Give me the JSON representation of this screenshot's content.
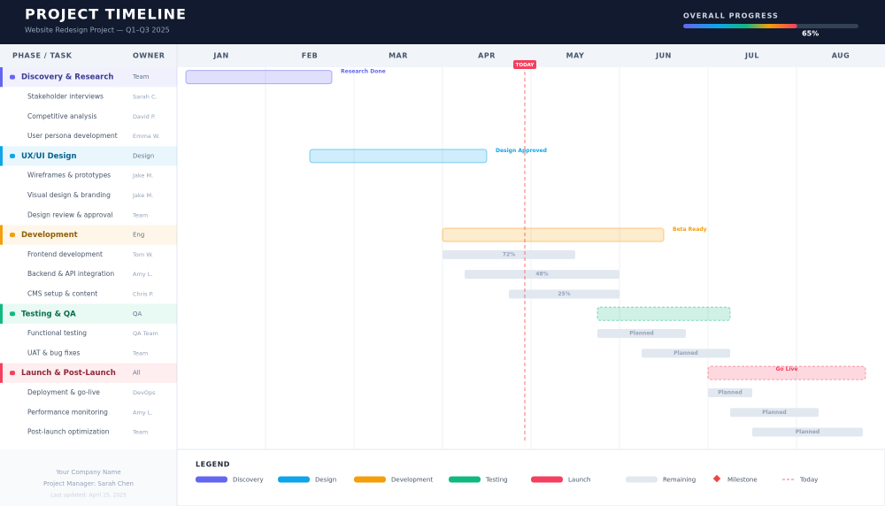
{
  "header": {
    "title": "PROJECT TIMELINE",
    "subtitle": "Website Redesign Project — Q1–Q3 2025",
    "progress_title": "OVERALL PROGRESS",
    "progress": {
      "value": 65,
      "label": "65%"
    }
  },
  "chart_data": {
    "type": "gantt",
    "columns": [
      "PHASE / TASK",
      "OWNER"
    ],
    "categories": [
      "JAN",
      "FEB",
      "MAR",
      "APR",
      "MAY",
      "JUN",
      "JUL",
      "AUG"
    ],
    "xlim": [
      0,
      8
    ],
    "today": 3.93,
    "today_label": "TODAY",
    "phases": [
      {
        "name": "Discovery & Research",
        "owner": "Team",
        "color": "#6366f1",
        "start": 0.1,
        "end": 1.75,
        "milestone": "Research Done",
        "dashed": false,
        "tasks": [
          {
            "name": "Stakeholder interviews",
            "owner": "Sarah C.",
            "start": null,
            "end": null,
            "label": null
          },
          {
            "name": "Competitive analysis",
            "owner": "David P.",
            "start": null,
            "end": null,
            "label": null
          },
          {
            "name": "User persona development",
            "owner": "Emma W.",
            "start": null,
            "end": null,
            "label": null
          }
        ]
      },
      {
        "name": "UX/UI Design",
        "owner": "Design",
        "color": "#0ea5e9",
        "start": 1.5,
        "end": 3.5,
        "milestone": "Design Approved",
        "dashed": false,
        "tasks": [
          {
            "name": "Wireframes & prototypes",
            "owner": "Jake M.",
            "start": null,
            "end": null,
            "label": null
          },
          {
            "name": "Visual design & branding",
            "owner": "Jake M.",
            "start": null,
            "end": null,
            "label": null
          },
          {
            "name": "Design review & approval",
            "owner": "Team",
            "start": null,
            "end": null,
            "label": null
          }
        ]
      },
      {
        "name": "Development",
        "owner": "Eng",
        "color": "#f59e0b",
        "start": 3.0,
        "end": 5.5,
        "milestone": "Beta Ready",
        "dashed": false,
        "tasks": [
          {
            "name": "Frontend development",
            "owner": "Tom W.",
            "start": 3.0,
            "end": 4.5,
            "label": "72%"
          },
          {
            "name": "Backend & API integration",
            "owner": "Amy L.",
            "start": 3.25,
            "end": 5.0,
            "label": "48%"
          },
          {
            "name": "CMS setup & content",
            "owner": "Chris P.",
            "start": 3.75,
            "end": 5.0,
            "label": "25%"
          }
        ]
      },
      {
        "name": "Testing & QA",
        "owner": "QA",
        "color": "#10b981",
        "start": 4.75,
        "end": 6.25,
        "milestone": null,
        "dashed": true,
        "tasks": [
          {
            "name": "Functional testing",
            "owner": "QA Team",
            "start": 4.75,
            "end": 5.75,
            "label": "Planned"
          },
          {
            "name": "UAT & bug fixes",
            "owner": "Team",
            "start": 5.25,
            "end": 6.25,
            "label": "Planned"
          }
        ]
      },
      {
        "name": "Launch & Post-Launch",
        "owner": "All",
        "color": "#f43f5e",
        "start": 6.0,
        "end": 7.78,
        "milestone": "Go Live",
        "dashed": true,
        "tasks": [
          {
            "name": "Deployment & go-live",
            "owner": "DevOps",
            "start": 6.0,
            "end": 6.5,
            "label": "Planned"
          },
          {
            "name": "Performance monitoring",
            "owner": "Amy L.",
            "start": 6.25,
            "end": 7.25,
            "label": "Planned"
          },
          {
            "name": "Post-launch optimization",
            "owner": "Team",
            "start": 6.5,
            "end": 7.75,
            "label": "Planned"
          }
        ]
      }
    ]
  },
  "legend": {
    "title": "LEGEND",
    "items": [
      {
        "label": "Discovery",
        "color": "#6366f1"
      },
      {
        "label": "Design",
        "color": "#0ea5e9"
      },
      {
        "label": "Development",
        "color": "#f59e0b"
      },
      {
        "label": "Testing",
        "color": "#10b981"
      },
      {
        "label": "Launch",
        "color": "#f43f5e"
      },
      {
        "label": "Remaining",
        "color": "#e2e8f0"
      },
      {
        "label": "Milestone",
        "color": "#ef4444"
      },
      {
        "label": "Today",
        "color": "#f87171"
      }
    ]
  },
  "footer": {
    "company": "Your Company Name",
    "manager": "Project Manager: Sarah Chen",
    "updated": "Last updated: April 15, 2025"
  }
}
